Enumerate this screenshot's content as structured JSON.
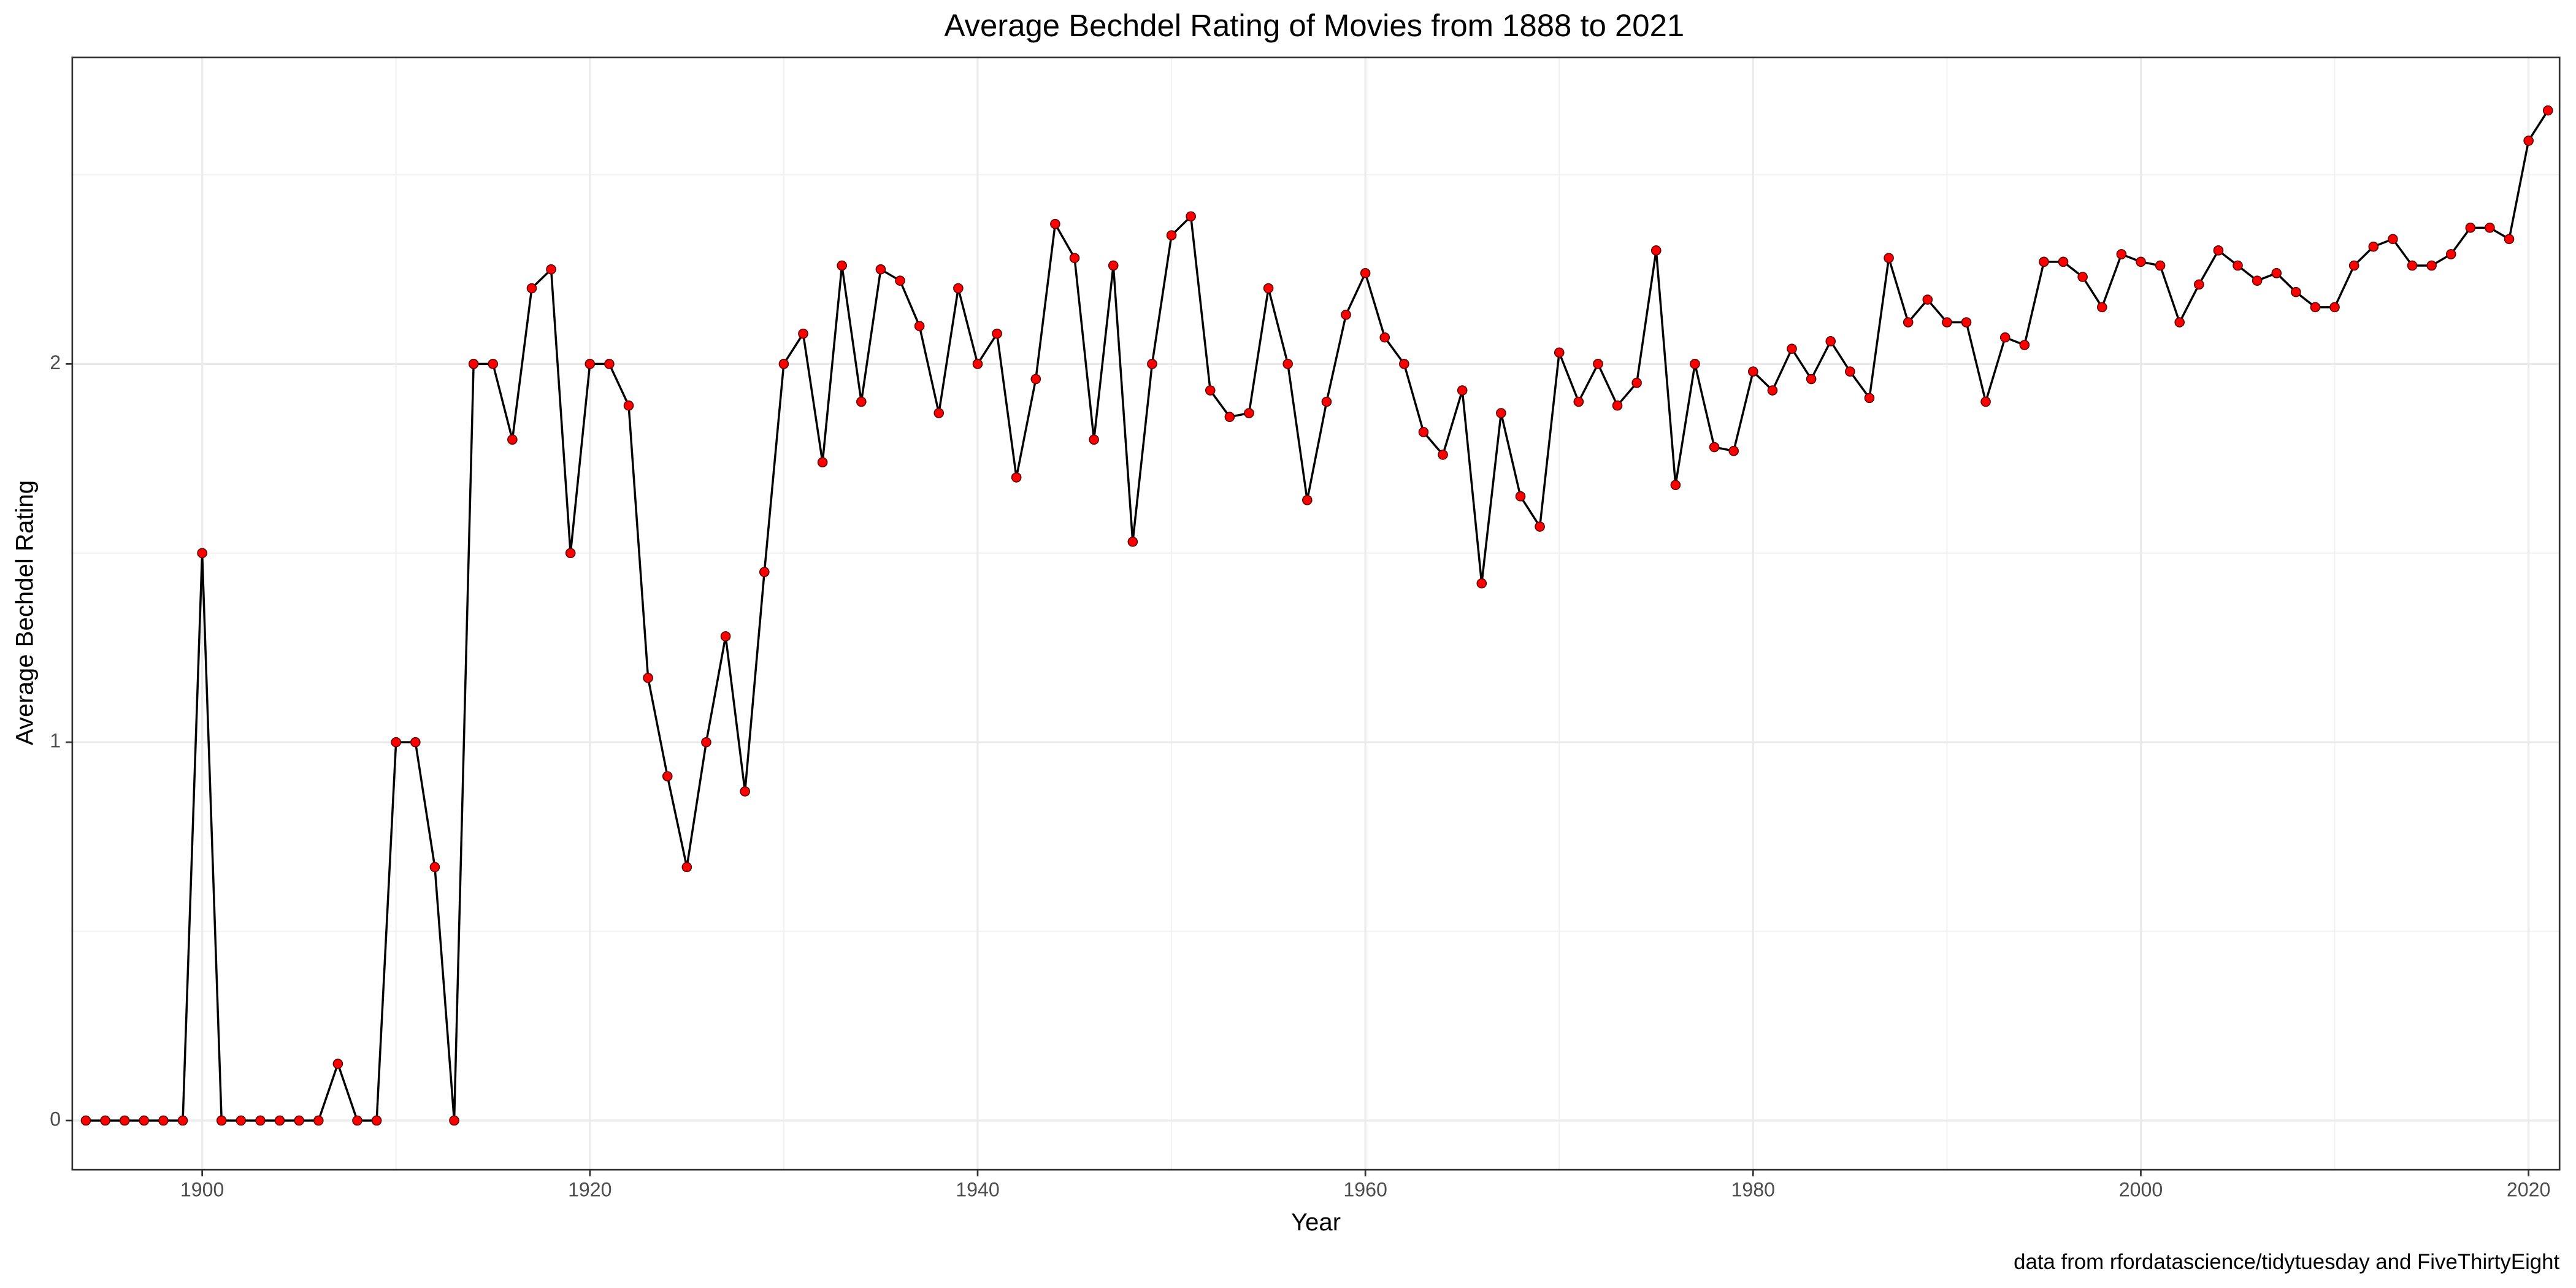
{
  "chart_data": {
    "type": "line",
    "title": "Average Bechdel Rating of Movies from 1888 to 2021",
    "x_label": "Year",
    "y_label": "Average Bechdel Rating",
    "caption": "data from rfordatascience/tidytuesday and FiveThirtyEight",
    "x": [
      1894,
      1895,
      1896,
      1897,
      1898,
      1899,
      1900,
      1901,
      1902,
      1903,
      1904,
      1905,
      1906,
      1907,
      1908,
      1909,
      1910,
      1911,
      1912,
      1913,
      1914,
      1915,
      1916,
      1917,
      1918,
      1919,
      1920,
      1921,
      1922,
      1923,
      1924,
      1925,
      1926,
      1927,
      1928,
      1929,
      1930,
      1931,
      1932,
      1933,
      1934,
      1935,
      1936,
      1937,
      1938,
      1939,
      1940,
      1941,
      1942,
      1943,
      1944,
      1945,
      1946,
      1947,
      1948,
      1949,
      1950,
      1951,
      1952,
      1953,
      1954,
      1955,
      1956,
      1957,
      1958,
      1959,
      1960,
      1961,
      1962,
      1963,
      1964,
      1965,
      1966,
      1967,
      1968,
      1969,
      1970,
      1971,
      1972,
      1973,
      1974,
      1975,
      1976,
      1977,
      1978,
      1979,
      1980,
      1981,
      1982,
      1983,
      1984,
      1985,
      1986,
      1987,
      1988,
      1989,
      1990,
      1991,
      1992,
      1993,
      1994,
      1995,
      1996,
      1997,
      1998,
      1999,
      2000,
      2001,
      2002,
      2003,
      2004,
      2005,
      2006,
      2007,
      2008,
      2009,
      2010,
      2011,
      2012,
      2013,
      2014,
      2015,
      2016,
      2017,
      2018,
      2019,
      2020,
      2021
    ],
    "values": [
      0,
      0,
      0,
      0,
      0,
      0,
      1.5,
      0,
      0,
      0,
      0,
      0,
      0,
      0.15,
      0,
      0,
      1,
      1,
      0.67,
      0,
      2,
      2,
      1.8,
      2.2,
      2.25,
      1.5,
      2,
      2,
      1.89,
      1.17,
      0.91,
      0.67,
      1,
      1.28,
      0.87,
      1.45,
      2,
      2.08,
      1.74,
      2.26,
      1.9,
      2.25,
      2.22,
      2.1,
      1.87,
      2.2,
      2,
      2.08,
      1.7,
      1.96,
      2.37,
      2.28,
      1.8,
      2.26,
      1.53,
      2,
      2.34,
      2.39,
      1.93,
      1.86,
      1.87,
      2.2,
      2,
      1.64,
      1.9,
      2.13,
      2.24,
      2.07,
      2,
      1.82,
      1.76,
      1.93,
      1.42,
      1.87,
      1.65,
      1.57,
      2.03,
      1.9,
      2,
      1.89,
      1.95,
      2.3,
      1.68,
      2,
      1.78,
      1.77,
      1.98,
      1.93,
      2.04,
      1.96,
      2.06,
      1.98,
      1.91,
      2.28,
      2.11,
      2.17,
      2.11,
      2.11,
      1.9,
      2.07,
      2.05,
      2.27,
      2.27,
      2.23,
      2.15,
      2.29,
      2.27,
      2.26,
      2.11,
      2.21,
      2.3,
      2.26,
      2.22,
      2.24,
      2.19,
      2.15,
      2.15,
      2.26,
      2.31,
      2.33,
      2.26,
      2.26,
      2.29,
      2.36,
      2.36,
      2.33,
      2.59,
      2.67
    ],
    "color": "#000000",
    "marker_color": "#ff0000",
    "xlim": [
      1893.3,
      2021.6
    ],
    "xticks": [
      1900,
      1920,
      1940,
      1960,
      1980,
      2000,
      2020
    ],
    "ylim": [
      -0.13,
      2.81
    ],
    "yticks": [
      0,
      1,
      2
    ],
    "grid": true
  }
}
